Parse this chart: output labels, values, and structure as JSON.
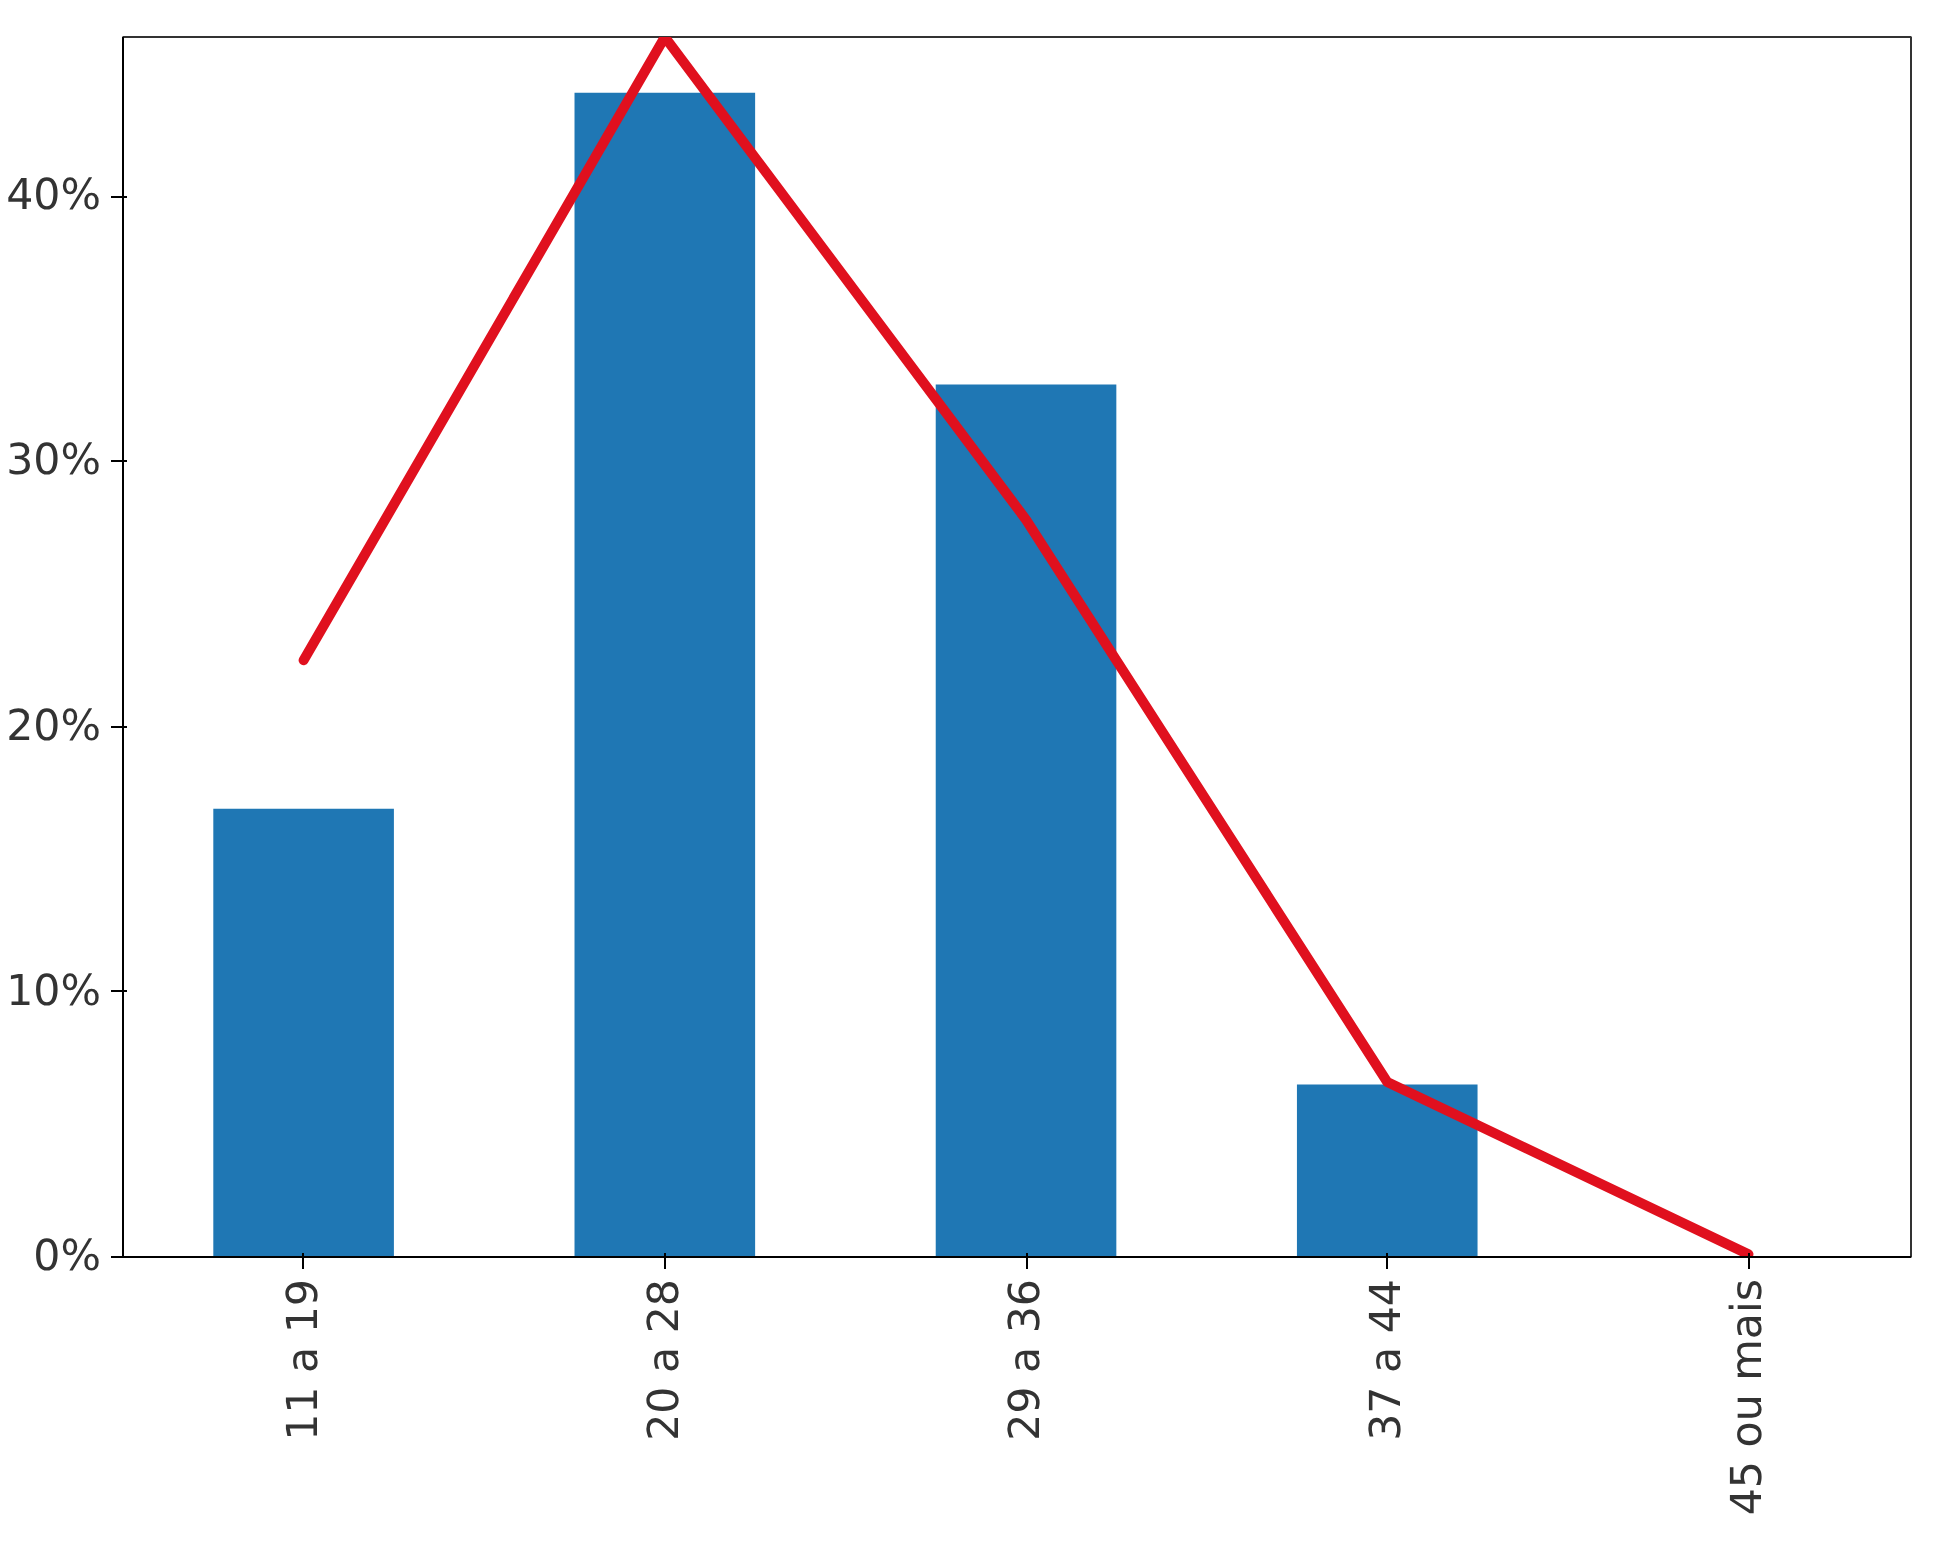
{
  "chart_data": {
    "type": "bar",
    "categories": [
      "11 a 19",
      "20 a 28",
      "29 a 36",
      "37 a 44",
      "45 ou mais"
    ],
    "ylim": [
      0,
      46
    ],
    "yticks": [
      {
        "value": 0,
        "label": "0%"
      },
      {
        "value": 10,
        "label": "10%"
      },
      {
        "value": 20,
        "label": "20%"
      },
      {
        "value": 30,
        "label": "30%"
      },
      {
        "value": 40,
        "label": "40%"
      }
    ],
    "grid": false,
    "series": [
      {
        "color": "#1f77b4",
        "values": [
          16.9,
          43.9,
          32.9,
          6.5,
          0
        ]
      },
      {
        "type": "line",
        "color": "#e0101e",
        "values": [
          22.5,
          46.0,
          27.8,
          6.6,
          0.1
        ]
      }
    ]
  }
}
